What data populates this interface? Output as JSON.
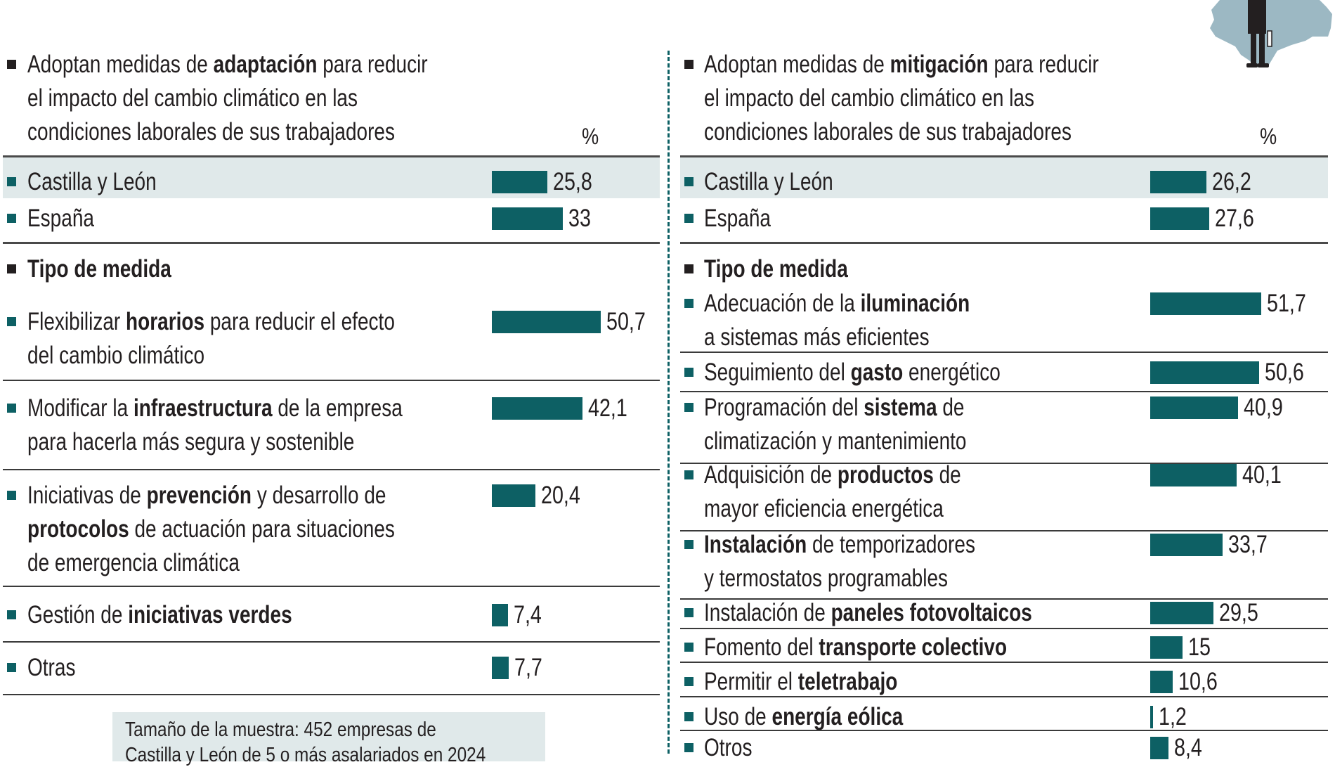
{
  "colors": {
    "bar": "#0d6064",
    "highlight": "#e0e9ea",
    "text": "#231f20",
    "map": "#9cb8c3"
  },
  "illustration": "map-of-castilla-y-leon-with-businessman-icon",
  "chart_data": [
    {
      "type": "bar",
      "orientation": "horizontal",
      "title": "Adoptan medidas de adaptación para reducir el impacto del cambio climático en las condiciones laborales de sus trabajadores",
      "unit": "%",
      "summary": {
        "categories": [
          "Castilla y León",
          "España"
        ],
        "values": [
          25.8,
          33
        ],
        "labels": [
          "25,8",
          "33"
        ],
        "highlighted": "Castilla y León"
      },
      "section_title": "Tipo de medida",
      "categories": [
        "Flexibilizar horarios para reducir el efecto del cambio climático",
        "Modificar la infraestructura de la empresa para hacerla más segura y sostenible",
        "Iniciativas de prevención y desarrollo de protocolos de actuación para situaciones de emergencia climática",
        "Gestión de iniciativas verdes",
        "Otras"
      ],
      "values": [
        50.7,
        42.1,
        20.4,
        7.4,
        7.7
      ],
      "labels": [
        "50,7",
        "42,1",
        "20,4",
        "7,4",
        "7,7"
      ]
    },
    {
      "type": "bar",
      "orientation": "horizontal",
      "title": "Adoptan medidas de mitigación para reducir el impacto del cambio climático en las condiciones laborales de sus trabajadores",
      "unit": "%",
      "summary": {
        "categories": [
          "Castilla y León",
          "España"
        ],
        "values": [
          26.2,
          27.6
        ],
        "labels": [
          "26,2",
          "27,6"
        ],
        "highlighted": "Castilla y León"
      },
      "section_title": "Tipo de medida",
      "categories": [
        "Adecuación de la iluminación a sistemas más eficientes",
        "Seguimiento del gasto energético",
        "Programación del sistema de climatización y mantenimiento",
        "Adquisición de productos de mayor eficiencia energética",
        "Instalación de temporizadores y termostatos programables",
        "Instalación de paneles fotovoltaicos",
        "Fomento del transporte colectivo",
        "Permitir el teletrabajo",
        "Uso de energía eólica",
        "Otros"
      ],
      "values": [
        51.7,
        50.6,
        40.9,
        40.1,
        33.7,
        29.5,
        15,
        10.6,
        1.2,
        8.4
      ],
      "labels": [
        "51,7",
        "50,6",
        "40,9",
        "40,1",
        "33,7",
        "29,5",
        "15",
        "10,6",
        "1,2",
        "8,4"
      ]
    }
  ],
  "left": {
    "header": [
      [
        {
          "t": "Adoptan medidas de "
        },
        {
          "t": "adaptación",
          "b": true
        },
        {
          "t": " para reducir"
        }
      ],
      [
        {
          "t": "el impacto del cambio climático en las"
        }
      ],
      [
        {
          "t": "condiciones laborales de sus trabajadores"
        }
      ]
    ],
    "unit_label": "%",
    "summary_labels": [
      "Castilla y León",
      "España"
    ],
    "section_title": "Tipo de medida",
    "rows": [
      [
        [
          {
            "t": "Flexibilizar "
          },
          {
            "t": "horarios",
            "b": true
          },
          {
            "t": " para reducir el efecto"
          }
        ],
        [
          {
            "t": "del cambio climático"
          }
        ]
      ],
      [
        [
          {
            "t": "Modificar la "
          },
          {
            "t": "infraestructura",
            "b": true
          },
          {
            "t": " de la empresa"
          }
        ],
        [
          {
            "t": "para hacerla más segura y sostenible"
          }
        ]
      ],
      [
        [
          {
            "t": "Iniciativas de "
          },
          {
            "t": "prevención",
            "b": true
          },
          {
            "t": " y desarrollo de"
          }
        ],
        [
          {
            "t": "protocolos",
            "b": true
          },
          {
            "t": " de actuación para situaciones"
          }
        ],
        [
          {
            "t": "de emergencia climática"
          }
        ]
      ],
      [
        [
          {
            "t": "Gestión de "
          },
          {
            "t": "iniciativas verdes",
            "b": true
          }
        ]
      ],
      [
        [
          {
            "t": "Otras"
          }
        ]
      ]
    ],
    "footnote": [
      "Tamaño de la muestra: 452 empresas de",
      "Castilla y León de 5 o más asalariados en 2024"
    ]
  },
  "right": {
    "header": [
      [
        {
          "t": "Adoptan medidas de "
        },
        {
          "t": "mitigación",
          "b": true
        },
        {
          "t": " para reducir"
        }
      ],
      [
        {
          "t": "el impacto del cambio climático en las"
        }
      ],
      [
        {
          "t": "condiciones laborales de sus trabajadores"
        }
      ]
    ],
    "unit_label": "%",
    "summary_labels": [
      "Castilla y León",
      "España"
    ],
    "section_title": "Tipo de medida",
    "rows": [
      [
        [
          {
            "t": "Adecuación de la "
          },
          {
            "t": "iluminación",
            "b": true
          }
        ],
        [
          {
            "t": "a sistemas más eficientes"
          }
        ]
      ],
      [
        [
          {
            "t": "Seguimiento del "
          },
          {
            "t": "gasto",
            "b": true
          },
          {
            "t": " energético"
          }
        ]
      ],
      [
        [
          {
            "t": "Programación del "
          },
          {
            "t": "sistema",
            "b": true
          },
          {
            "t": " de"
          }
        ],
        [
          {
            "t": "climatización y mantenimiento"
          }
        ]
      ],
      [
        [
          {
            "t": "Adquisición de "
          },
          {
            "t": "productos",
            "b": true
          },
          {
            "t": " de"
          }
        ],
        [
          {
            "t": "mayor eficiencia energética"
          }
        ]
      ],
      [
        [
          {
            "t": "Instalación",
            "b": true
          },
          {
            "t": " de temporizadores"
          }
        ],
        [
          {
            "t": "y termostatos programables"
          }
        ]
      ],
      [
        [
          {
            "t": "Instalación de "
          },
          {
            "t": "paneles fotovoltaicos",
            "b": true
          }
        ]
      ],
      [
        [
          {
            "t": "Fomento del "
          },
          {
            "t": "transporte colectivo",
            "b": true
          }
        ]
      ],
      [
        [
          {
            "t": "Permitir el "
          },
          {
            "t": "teletrabajo",
            "b": true
          }
        ]
      ],
      [
        [
          {
            "t": "Uso de "
          },
          {
            "t": "energía eólica",
            "b": true
          }
        ]
      ],
      [
        [
          {
            "t": "Otros"
          }
        ]
      ]
    ]
  }
}
